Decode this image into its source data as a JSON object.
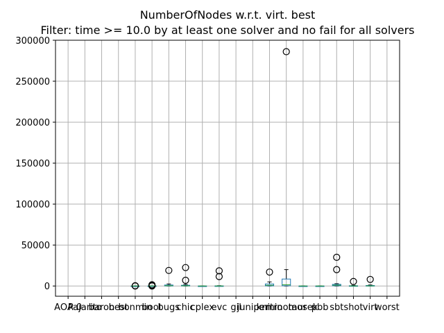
{
  "chart_data": {
    "type": "box",
    "title": "NumberOfNodes w.r.t. virt. best",
    "subtitle": "Filter: time >= 10.0 by at least one solver and no fail for all solvers",
    "xlabel": "",
    "ylabel": "",
    "ylim": [
      -12500,
      300000
    ],
    "yticks": [
      0,
      50000,
      100000,
      150000,
      200000,
      250000,
      300000
    ],
    "ytick_labels": [
      "0",
      "50000",
      "100000",
      "150000",
      "200000",
      "250000",
      "300000"
    ],
    "grid": true,
    "categories": [
      "AOA 0",
      "Pajarito",
      "baron",
      "best",
      "bonmin",
      "boot",
      "bugs",
      "chic",
      "cplex",
      "evc",
      "gil",
      "juniper",
      "knitro",
      "minotaur",
      "mosek",
      "pbb",
      "sbt",
      "shot",
      "virt",
      "worst"
    ],
    "boxes": [
      {
        "category": "AOA 0",
        "visible": false
      },
      {
        "category": "Pajarito",
        "visible": false
      },
      {
        "category": "baron",
        "visible": false
      },
      {
        "category": "best",
        "visible": false
      },
      {
        "category": "bonmin",
        "min": 0,
        "q1": 0,
        "median": 0,
        "q3": 0,
        "max": 0,
        "fliers": [
          0,
          300
        ]
      },
      {
        "category": "boot",
        "min": 0,
        "q1": 0,
        "median": 50,
        "q3": 100,
        "max": 150,
        "fliers": [
          0,
          500,
          800,
          1500
        ]
      },
      {
        "category": "bugs",
        "min": 0,
        "q1": 100,
        "median": 400,
        "q3": 1200,
        "max": 2500,
        "fliers": [
          19000
        ]
      },
      {
        "category": "chic",
        "min": 0,
        "q1": 100,
        "median": 300,
        "q3": 900,
        "max": 2000,
        "fliers": [
          7000,
          22500
        ]
      },
      {
        "category": "cplex",
        "min": 0,
        "q1": 0,
        "median": 0,
        "q3": 0,
        "max": 0,
        "fliers": []
      },
      {
        "category": "evc",
        "min": 0,
        "q1": 0,
        "median": 50,
        "q3": 150,
        "max": 400,
        "fliers": [
          11500,
          18500
        ]
      },
      {
        "category": "gil",
        "visible": false
      },
      {
        "category": "juniper",
        "visible": false
      },
      {
        "category": "knitro",
        "min": 0,
        "q1": 200,
        "median": 900,
        "q3": 2500,
        "max": 5000,
        "fliers": [
          17000
        ]
      },
      {
        "category": "minotaur",
        "min": 0,
        "q1": 300,
        "median": 1500,
        "q3": 8500,
        "max": 20000,
        "fliers": [
          286000
        ]
      },
      {
        "category": "mosek",
        "min": 0,
        "q1": 0,
        "median": 0,
        "q3": 0,
        "max": 0,
        "fliers": []
      },
      {
        "category": "pbb",
        "min": 0,
        "q1": 0,
        "median": 0,
        "q3": 0,
        "max": 0,
        "fliers": []
      },
      {
        "category": "sbt",
        "min": 0,
        "q1": 300,
        "median": 1000,
        "q3": 2000,
        "max": 2800,
        "fliers": [
          20000,
          35000
        ]
      },
      {
        "category": "shot",
        "min": 0,
        "q1": 0,
        "median": 100,
        "q3": 300,
        "max": 700,
        "fliers": [
          5500
        ]
      },
      {
        "category": "virt",
        "min": 0,
        "q1": 0,
        "median": 200,
        "q3": 600,
        "max": 1200,
        "fliers": [
          8000
        ]
      },
      {
        "category": "worst",
        "visible": false
      }
    ]
  }
}
